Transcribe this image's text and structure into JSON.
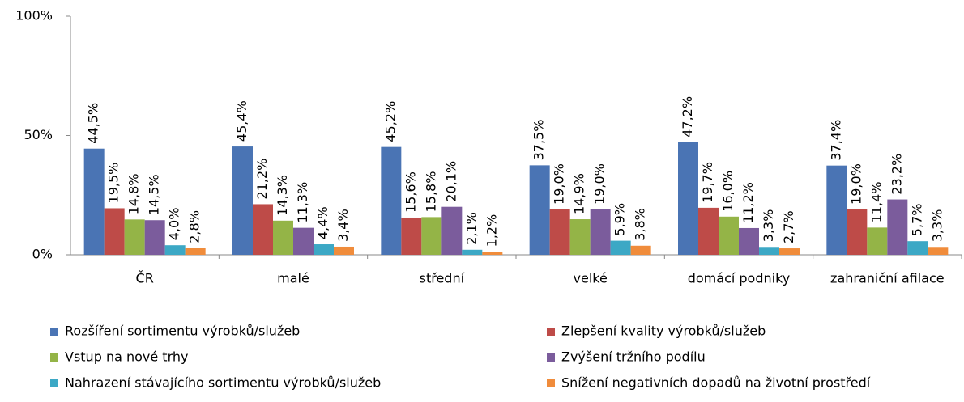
{
  "chart_data": {
    "type": "bar",
    "categories": [
      "ČR",
      "malé",
      "střední",
      "velké",
      "domácí podniky",
      "zahraniční afilace"
    ],
    "series": [
      {
        "name": "Rozšíření sortimentu výrobků/služeb",
        "color": "#4a74b4",
        "values": [
          44.5,
          45.4,
          45.2,
          37.5,
          47.2,
          37.4
        ],
        "value_labels": [
          "44,5%",
          "45,4%",
          "45,2%",
          "37,5%",
          "47,2%",
          "37,4%"
        ]
      },
      {
        "name": "Zlepšení kvality výrobků/služeb",
        "color": "#be4b48",
        "values": [
          19.5,
          21.2,
          15.6,
          19.0,
          19.7,
          19.0
        ],
        "value_labels": [
          "19,5%",
          "21,2%",
          "15,6%",
          "19,0%",
          "19,7%",
          "19,0%"
        ]
      },
      {
        "name": "Vstup na nové trhy",
        "color": "#94b447",
        "values": [
          14.8,
          14.3,
          15.8,
          14.9,
          16.0,
          11.4
        ],
        "value_labels": [
          "14,8%",
          "14,3%",
          "15,8%",
          "14,9%",
          "16,0%",
          "11,4%"
        ]
      },
      {
        "name": "Zvýšení tržního podílu",
        "color": "#7b5c9c",
        "values": [
          14.5,
          11.3,
          20.1,
          19.0,
          11.2,
          23.2
        ],
        "value_labels": [
          "14,5%",
          "11,3%",
          "20,1%",
          "19,0%",
          "11,2%",
          "23,2%"
        ]
      },
      {
        "name": "Nahrazení stávajícího sortimentu výrobků/služeb",
        "color": "#3ca8c5",
        "values": [
          4.0,
          4.4,
          2.1,
          5.9,
          3.3,
          5.7
        ],
        "value_labels": [
          "4,0%",
          "4,4%",
          "2,1%",
          "5,9%",
          "3,3%",
          "5,7%"
        ]
      },
      {
        "name": "Snížení negativních dopadů na životní prostředí",
        "color": "#f08c3b",
        "values": [
          2.8,
          3.4,
          1.2,
          3.8,
          2.7,
          3.3
        ],
        "value_labels": [
          "2,8%",
          "3,4%",
          "1,2%",
          "3,8%",
          "2,7%",
          "3,3%"
        ]
      }
    ],
    "ylim": [
      0,
      100
    ],
    "yticks": [
      {
        "value": 0,
        "label": "0%"
      },
      {
        "value": 50,
        "label": "50%"
      },
      {
        "value": 100,
        "label": "100%"
      }
    ],
    "legend": "bottom"
  }
}
